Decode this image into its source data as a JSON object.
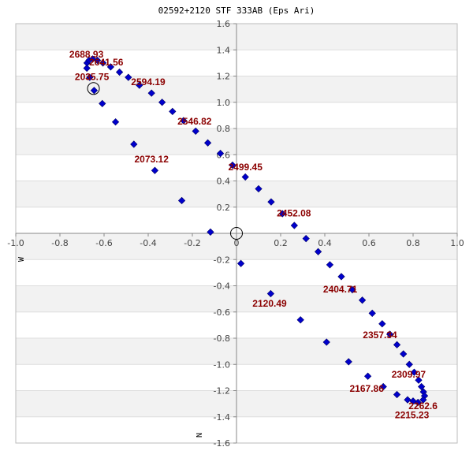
{
  "chart_data": {
    "type": "scatter",
    "title": "02592+2120 STF 333AB (Eps Ari)",
    "xlim": [
      -1.0,
      1.0
    ],
    "ylim": [
      -1.6,
      1.6
    ],
    "xticks": [
      "-1.0",
      "-0.8",
      "-0.6",
      "-0.4",
      "-0.2",
      "0",
      "0.2",
      "0.4",
      "0.6",
      "0.8",
      "1.0"
    ],
    "xtick_values": [
      -1.0,
      -0.8,
      -0.6,
      -0.4,
      -0.2,
      0,
      0.2,
      0.4,
      0.6,
      0.8,
      1.0
    ],
    "yticks": [
      "1.6",
      "1.4",
      "1.2",
      "1.0",
      "0.8",
      "0.6",
      "0.4",
      "0.2",
      "-0.2",
      "-0.4",
      "-0.6",
      "-0.8",
      "-1.0",
      "-1.2",
      "-1.4",
      "-1.6"
    ],
    "ytick_values": [
      1.6,
      1.4,
      1.2,
      1.0,
      0.8,
      0.6,
      0.4,
      0.2,
      -0.2,
      -0.4,
      -0.6,
      -0.8,
      -1.0,
      -1.2,
      -1.4,
      -1.6
    ],
    "x_axis_label": "W",
    "y_axis_label": "N",
    "colors": {
      "points": "#0000cc",
      "labels": "#8b0000",
      "band": "#f2f2f2",
      "grid": "#dddddd",
      "axis": "#888888"
    },
    "orbit_points": [
      {
        "x": -0.677,
        "y": 1.3
      },
      {
        "x": -0.668,
        "y": 1.32
      },
      {
        "x": -0.652,
        "y": 1.33
      },
      {
        "x": -0.63,
        "y": 1.32
      },
      {
        "x": -0.605,
        "y": 1.3
      },
      {
        "x": -0.57,
        "y": 1.27
      },
      {
        "x": -0.53,
        "y": 1.23
      },
      {
        "x": -0.49,
        "y": 1.19
      },
      {
        "x": -0.44,
        "y": 1.13
      },
      {
        "x": -0.385,
        "y": 1.07
      },
      {
        "x": -0.337,
        "y": 1.0
      },
      {
        "x": -0.29,
        "y": 0.93
      },
      {
        "x": -0.24,
        "y": 0.86
      },
      {
        "x": -0.185,
        "y": 0.78
      },
      {
        "x": -0.13,
        "y": 0.69
      },
      {
        "x": -0.073,
        "y": 0.61
      },
      {
        "x": -0.018,
        "y": 0.52
      },
      {
        "x": 0.04,
        "y": 0.43
      },
      {
        "x": 0.1,
        "y": 0.34
      },
      {
        "x": 0.157,
        "y": 0.24
      },
      {
        "x": 0.208,
        "y": 0.15
      },
      {
        "x": 0.262,
        "y": 0.06
      },
      {
        "x": 0.315,
        "y": -0.04
      },
      {
        "x": 0.37,
        "y": -0.14
      },
      {
        "x": 0.423,
        "y": -0.24
      },
      {
        "x": 0.475,
        "y": -0.33
      },
      {
        "x": 0.525,
        "y": -0.43
      },
      {
        "x": 0.57,
        "y": -0.51
      },
      {
        "x": 0.615,
        "y": -0.61
      },
      {
        "x": 0.66,
        "y": -0.69
      },
      {
        "x": 0.695,
        "y": -0.77
      },
      {
        "x": 0.727,
        "y": -0.85
      },
      {
        "x": 0.756,
        "y": -0.92
      },
      {
        "x": 0.783,
        "y": -1.0
      },
      {
        "x": 0.805,
        "y": -1.06
      },
      {
        "x": 0.825,
        "y": -1.12
      },
      {
        "x": 0.838,
        "y": -1.17
      },
      {
        "x": 0.847,
        "y": -1.21
      },
      {
        "x": 0.852,
        "y": -1.24
      },
      {
        "x": 0.846,
        "y": -1.27
      },
      {
        "x": 0.822,
        "y": -1.29
      },
      {
        "x": 0.8,
        "y": -1.28
      },
      {
        "x": 0.775,
        "y": -1.27
      },
      {
        "x": 0.727,
        "y": -1.23
      },
      {
        "x": 0.665,
        "y": -1.17
      },
      {
        "x": 0.595,
        "y": -1.09
      },
      {
        "x": 0.508,
        "y": -0.98
      },
      {
        "x": 0.408,
        "y": -0.83
      },
      {
        "x": 0.29,
        "y": -0.66
      },
      {
        "x": 0.155,
        "y": -0.46
      },
      {
        "x": 0.02,
        "y": -0.23
      },
      {
        "x": -0.118,
        "y": 0.01
      },
      {
        "x": -0.248,
        "y": 0.25
      },
      {
        "x": -0.37,
        "y": 0.48
      },
      {
        "x": -0.465,
        "y": 0.68
      },
      {
        "x": -0.548,
        "y": 0.85
      },
      {
        "x": -0.608,
        "y": 0.99
      },
      {
        "x": -0.645,
        "y": 1.09
      },
      {
        "x": -0.665,
        "y": 1.19
      },
      {
        "x": -0.678,
        "y": 1.26
      }
    ],
    "annotations": [
      {
        "text": "2688.93",
        "x": -0.68,
        "y": 1.34,
        "anchor": "middle"
      },
      {
        "text": "2641.56",
        "x": -0.59,
        "y": 1.28,
        "anchor": "middle"
      },
      {
        "text": "2035.75",
        "x": -0.655,
        "y": 1.17,
        "anchor": "middle"
      },
      {
        "text": "2594.19",
        "x": -0.4,
        "y": 1.13,
        "anchor": "middle"
      },
      {
        "text": "2546.82",
        "x": -0.19,
        "y": 0.83,
        "anchor": "middle"
      },
      {
        "text": "2073.12",
        "x": -0.385,
        "y": 0.54,
        "anchor": "middle"
      },
      {
        "text": "2499.45",
        "x": 0.04,
        "y": 0.48,
        "anchor": "middle"
      },
      {
        "text": "2452.08",
        "x": 0.26,
        "y": 0.13,
        "anchor": "middle"
      },
      {
        "text": "2404.71",
        "x": 0.47,
        "y": -0.45,
        "anchor": "middle"
      },
      {
        "text": "2120.49",
        "x": 0.15,
        "y": -0.56,
        "anchor": "middle"
      },
      {
        "text": "2357.34",
        "x": 0.65,
        "y": -0.8,
        "anchor": "middle"
      },
      {
        "text": "2309.97",
        "x": 0.78,
        "y": -1.1,
        "anchor": "middle"
      },
      {
        "text": "2167.86",
        "x": 0.59,
        "y": -1.21,
        "anchor": "middle"
      },
      {
        "text": "2262.6",
        "x": 0.845,
        "y": -1.34,
        "anchor": "middle"
      },
      {
        "text": "2215.23",
        "x": 0.795,
        "y": -1.41,
        "anchor": "middle"
      }
    ],
    "circles": [
      {
        "name": "primary-star-marker",
        "x": 0.0,
        "y": 0.0
      },
      {
        "name": "reference-position-marker",
        "x": -0.648,
        "y": 1.105
      }
    ]
  }
}
